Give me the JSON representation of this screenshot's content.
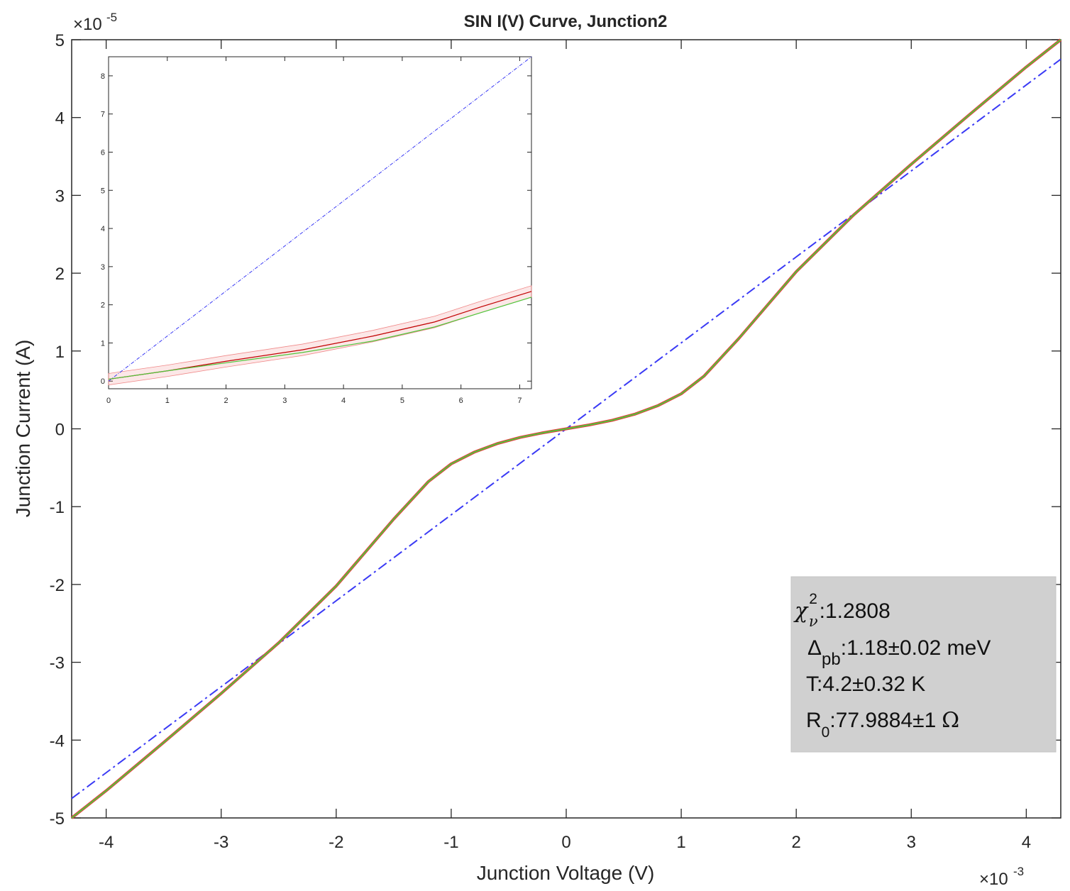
{
  "chart_data": {
    "type": "line",
    "title": "SIN I(V) Curve, Junction2",
    "xlabel": "Junction Voltage (V)",
    "ylabel": "Junction Current (A)",
    "xlim": [
      -0.0043,
      0.0043
    ],
    "ylim": [
      -5e-05,
      5e-05
    ],
    "x_ticks": [
      -4,
      -3,
      -2,
      -1,
      0,
      1,
      2,
      3,
      4
    ],
    "y_ticks": [
      -5,
      -4,
      -3,
      -2,
      -1,
      0,
      1,
      2,
      3,
      4,
      5
    ],
    "x_exponent": "-3",
    "y_exponent": "-5",
    "grid": false,
    "colors": {
      "data": "#e53b3b",
      "fit": "#4fc63a",
      "ohmic": "#3a3af5"
    },
    "series": [
      {
        "x": [
          -0.0043,
          -0.004,
          -0.0035,
          -0.003,
          -0.0025,
          -0.002,
          -0.0015,
          -0.0012,
          -0.001,
          -0.0008,
          -0.0006,
          -0.0004,
          -0.0002,
          0,
          0.0002,
          0.0004,
          0.0006,
          0.0008,
          0.001,
          0.0012,
          0.0015,
          0.002,
          0.0025,
          0.003,
          0.0035,
          0.004,
          0.0043
        ],
        "y": [
          -5e-05,
          -4.65e-05,
          -4.03e-05,
          -3.4e-05,
          -2.75e-05,
          -2.02e-05,
          -1.16e-05,
          -6.8e-06,
          -4.5e-06,
          -3e-06,
          -1.9e-06,
          -1.1e-06,
          -5e-07,
          0,
          5e-07,
          1.1e-06,
          1.9e-06,
          3e-06,
          4.5e-06,
          6.8e-06,
          1.16e-05,
          2.02e-05,
          2.75e-05,
          3.4e-05,
          4.03e-05,
          4.65e-05,
          5e-05
        ]
      },
      {
        "x": [
          -0.0043,
          -0.004,
          -0.0035,
          -0.003,
          -0.0025,
          -0.002,
          -0.0015,
          -0.0012,
          -0.001,
          -0.0008,
          -0.0006,
          -0.0004,
          -0.0002,
          0,
          0.0002,
          0.0004,
          0.0006,
          0.0008,
          0.001,
          0.0012,
          0.0015,
          0.002,
          0.0025,
          0.003,
          0.0035,
          0.004,
          0.0043
        ],
        "y": [
          -5e-05,
          -4.65e-05,
          -4.03e-05,
          -3.4e-05,
          -2.75e-05,
          -2.02e-05,
          -1.16e-05,
          -6.8e-06,
          -4.5e-06,
          -3e-06,
          -1.9e-06,
          -1.1e-06,
          -5e-07,
          0,
          5e-07,
          1.1e-06,
          1.9e-06,
          3e-06,
          4.5e-06,
          6.8e-06,
          1.16e-05,
          2.02e-05,
          2.75e-05,
          3.4e-05,
          4.03e-05,
          4.65e-05,
          5e-05
        ]
      },
      {
        "style": "dash-dot",
        "x": [
          -0.0043,
          0.0043
        ],
        "y": [
          -4.75e-05,
          4.75e-05
        ]
      }
    ],
    "inset": {
      "xlim": [
        0,
        7.2
      ],
      "ylim": [
        -0.2,
        8.5
      ],
      "x_ticks": [
        0,
        1,
        2,
        3,
        4,
        5,
        6,
        7
      ],
      "y_ticks": [
        0,
        1,
        2,
        3,
        4,
        5,
        6,
        7,
        8
      ],
      "series": [
        {
          "x": [
            0,
            1,
            2,
            3.3,
            4.5,
            5.55,
            6.35,
            7.2
          ],
          "y": [
            0.05,
            0.27,
            0.52,
            0.82,
            1.18,
            1.55,
            1.95,
            2.35
          ]
        },
        {
          "x": [
            0,
            1,
            2,
            3.3,
            4.5,
            5.55,
            6.35,
            7.2
          ],
          "y": [
            0.05,
            0.27,
            0.48,
            0.75,
            1.05,
            1.42,
            1.8,
            2.2
          ]
        },
        {
          "style": "dash-dot",
          "x": [
            0,
            7.2
          ],
          "y": [
            0,
            8.5
          ]
        }
      ],
      "band": {
        "x": [
          0,
          1,
          2,
          3.3,
          4.5,
          5.55,
          6.35,
          7.2
        ],
        "upper": [
          0.2,
          0.42,
          0.67,
          0.97,
          1.33,
          1.7,
          2.1,
          2.5
        ],
        "lower": [
          -0.1,
          0.12,
          0.37,
          0.67,
          1.03,
          1.4,
          1.8,
          2.2
        ]
      }
    }
  },
  "stats_box": {
    "chi_symbol": "χ",
    "chi_sup": "2",
    "chi_sub": "ν",
    "chi_value": ":1.2808",
    "delta_symbol": "Δ",
    "delta_sub": "pb",
    "delta_value": ":1.18±0.02 meV",
    "temperature": "T:4.2±0.32 K",
    "r_symbol": "R",
    "r_sub": "0",
    "r_value": ":77.9884±1",
    "ohm_symbol": "Ω"
  }
}
